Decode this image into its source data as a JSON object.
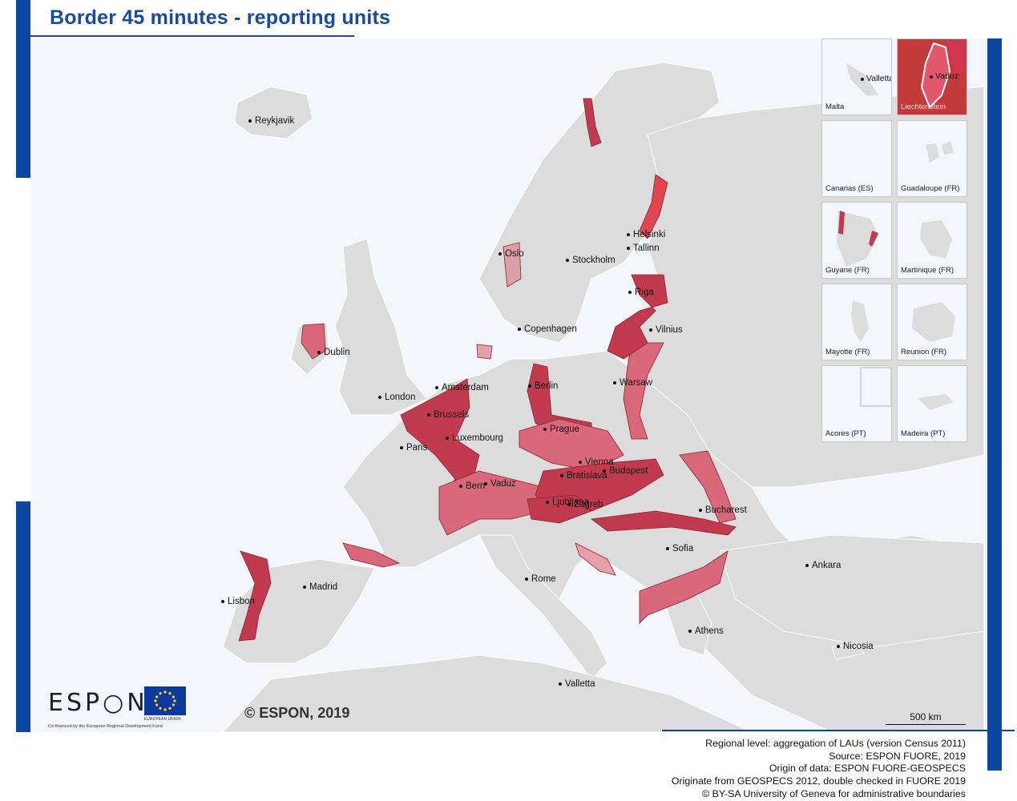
{
  "title": "Border 45 minutes - reporting units",
  "copyright": "© ESPON, 2019",
  "scale_label": "500 km",
  "logos": {
    "espon_word": "ESP○N",
    "espon_sub": "Co-financed by the European Regional Development Fund",
    "eu_sub": "EUROPEAN UNION"
  },
  "notes": [
    "Regional level: aggregation of LAUs (version Census 2011)",
    "Source: ESPON FUORE, 2019",
    "Origin of data: ESPON FUORE-GEOSPECS",
    "Originate from GEOSPECS 2012, double checked in FUORE 2019",
    "© BY-SA University of Geneva for administrative boundaries"
  ],
  "cities": {
    "reykjavik": "Reykjavik",
    "oslo": "Oslo",
    "stockholm": "Stockholm",
    "helsinki": "Helsinki",
    "tallinn": "Tallinn",
    "riga": "Riga",
    "vilnius": "Vilnius",
    "copenhagen": "Copenhagen",
    "dublin": "Dublin",
    "london": "London",
    "amsterdam": "Amsterdam",
    "brussels": "Brussels",
    "berlin": "Berlin",
    "warsaw": "Warsaw",
    "prague": "Prague",
    "luxembourg": "Luxembourg",
    "paris": "Paris",
    "vienna": "Vienna",
    "bratislava": "Bratislava",
    "budapest": "Budapest",
    "bern": "Bern",
    "vaduz": "Vaduz",
    "ljubljana": "Ljubljana",
    "zagreb": "Zagreb",
    "bucharest": "Bucharest",
    "sofia": "Sofia",
    "ankara": "Ankara",
    "rome": "Rome",
    "madrid": "Madrid",
    "lisbon": "Lisbon",
    "athens": "Athens",
    "nicosia": "Nicosia",
    "valletta": "Valletta"
  },
  "insets": [
    {
      "label": "Malta",
      "capital": "Valletta"
    },
    {
      "label": "Liechtenstein",
      "capital": "Vaduz"
    },
    {
      "label": "Canarias (ES)",
      "capital": ""
    },
    {
      "label": "Guadaloupe (FR)",
      "capital": ""
    },
    {
      "label": "Guyane (FR)",
      "capital": ""
    },
    {
      "label": "Martinique (FR)",
      "capital": ""
    },
    {
      "label": "Mayotte (FR)",
      "capital": ""
    },
    {
      "label": "Reunion (FR)",
      "capital": ""
    },
    {
      "label": "Acores (PT)",
      "capital": ""
    },
    {
      "label": "Madeira (PT)",
      "capital": ""
    }
  ],
  "colors": {
    "accent_blue": "#0b47a1",
    "sea": "#f3f7fb",
    "land": "#dcdcdc",
    "border_region_dark": "#c23a4e",
    "border_region_mid": "#d9697a",
    "border_region_light": "#e8a0a8"
  }
}
